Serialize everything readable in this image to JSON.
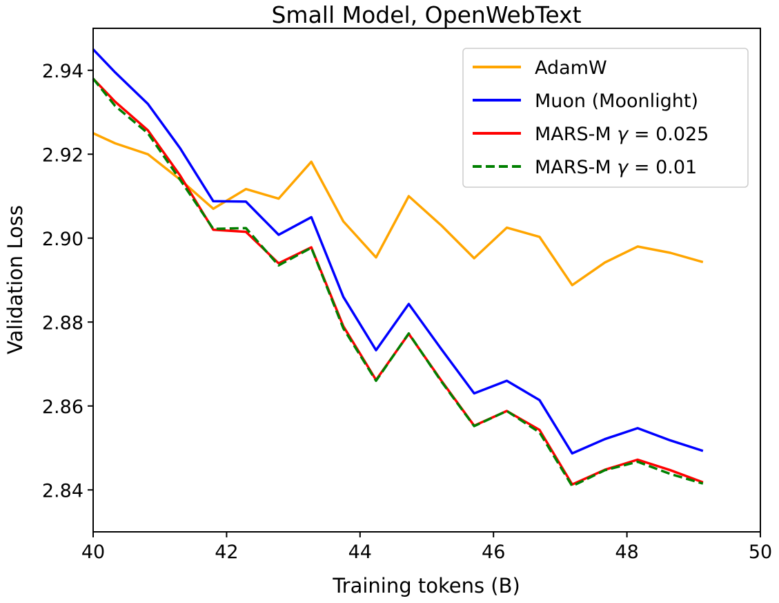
{
  "chart_data": {
    "type": "line",
    "title": "Small Model, OpenWebText",
    "xlabel": "Training tokens (B)",
    "ylabel": "Validation Loss",
    "xlim": [
      40,
      50
    ],
    "ylim": [
      2.83,
      2.95
    ],
    "xticks": [
      40,
      42,
      44,
      46,
      48,
      50
    ],
    "yticks": [
      2.84,
      2.86,
      2.88,
      2.9,
      2.92,
      2.94
    ],
    "ytick_labels": [
      "2.84",
      "2.86",
      "2.88",
      "2.90",
      "2.92",
      "2.94"
    ],
    "grid": false,
    "legend_position": "upper-right",
    "x": [
      40.0,
      40.33,
      40.82,
      41.3,
      41.8,
      42.29,
      42.78,
      43.27,
      43.75,
      44.24,
      44.73,
      45.22,
      45.71,
      46.2,
      46.69,
      47.18,
      47.67,
      48.16,
      48.65,
      49.14
    ],
    "series": [
      {
        "name": "AdamW",
        "color": "#FFA500",
        "dash": "solid",
        "values": [
          2.925,
          2.9226,
          2.92,
          2.914,
          2.907,
          2.9117,
          2.9094,
          2.9182,
          2.904,
          2.8954,
          2.91,
          2.903,
          2.8952,
          2.9025,
          2.9003,
          2.8888,
          2.8942,
          2.898,
          2.8965,
          2.8943
        ]
      },
      {
        "name": "Muon (Moonlight)",
        "color": "#0000FF",
        "dash": "solid",
        "values": [
          2.945,
          2.9395,
          2.932,
          2.9215,
          2.9088,
          2.9087,
          2.9008,
          2.905,
          2.886,
          2.8733,
          2.8843,
          2.8735,
          2.863,
          2.866,
          2.8614,
          2.8487,
          2.8521,
          2.8547,
          2.8518,
          2.8493
        ]
      },
      {
        "name": "MARS-M γ = 0.025",
        "color": "#FF0000",
        "dash": "solid",
        "values": [
          2.938,
          2.9325,
          2.9257,
          2.915,
          2.902,
          2.9015,
          2.894,
          2.8978,
          2.879,
          2.8662,
          2.8772,
          2.866,
          2.8553,
          2.8588,
          2.8543,
          2.8413,
          2.8448,
          2.8472,
          2.8447,
          2.8418
        ]
      },
      {
        "name": "MARS-M γ = 0.01",
        "color": "#008000",
        "dash": "dashed",
        "values": [
          2.938,
          2.9315,
          2.925,
          2.914,
          2.9022,
          2.9024,
          2.8935,
          2.8977,
          2.8785,
          2.866,
          2.8773,
          2.8658,
          2.8552,
          2.8588,
          2.8537,
          2.8409,
          2.8447,
          2.8467,
          2.8438,
          2.8415
        ]
      }
    ]
  },
  "legend": {
    "items": [
      {
        "text": "AdamW"
      },
      {
        "text": "Muon (Moonlight)"
      },
      {
        "prefix": "MARS-M ",
        "symbol": "γ",
        "suffix": " = 0.025"
      },
      {
        "prefix": "MARS-M ",
        "symbol": "γ",
        "suffix": " = 0.01"
      }
    ]
  }
}
